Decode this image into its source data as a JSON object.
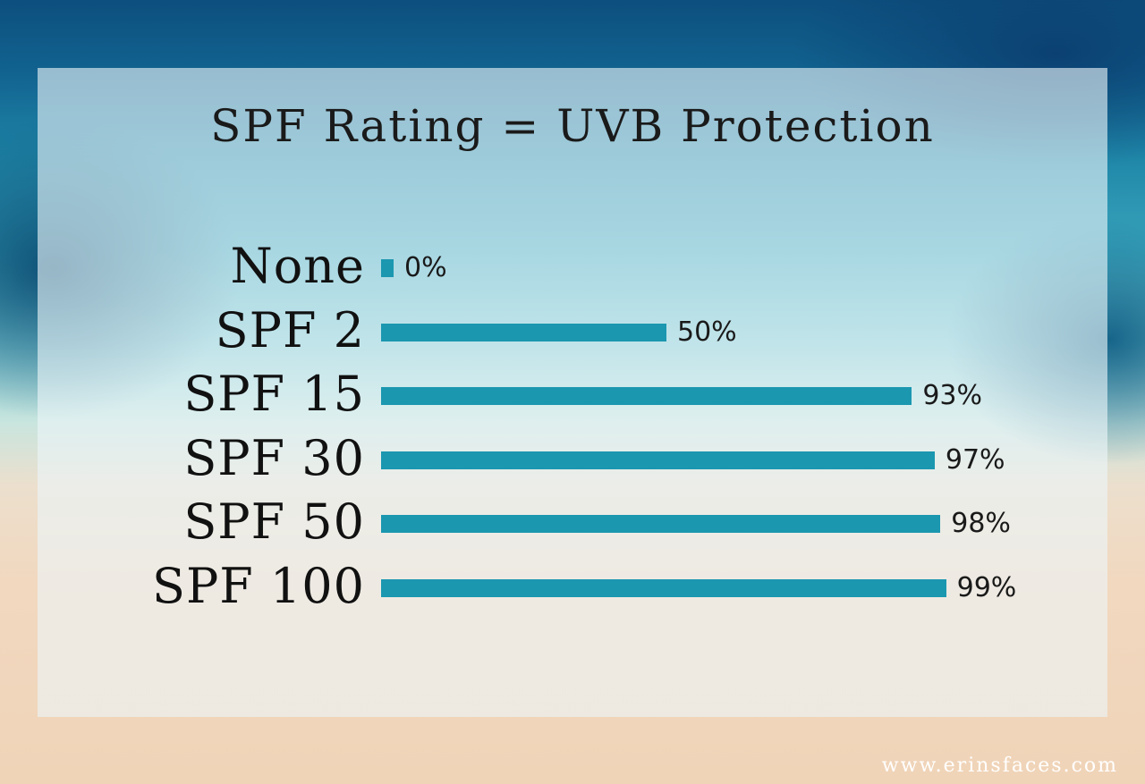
{
  "chart_data": {
    "type": "bar",
    "orientation": "horizontal",
    "title": "SPF Rating = UVB Protection",
    "categories": [
      "None",
      "SPF 2",
      "SPF 15",
      "SPF 30",
      "SPF 50",
      "SPF 100"
    ],
    "values": [
      0,
      50,
      93,
      97,
      98,
      99
    ],
    "value_labels": [
      "0%",
      "50%",
      "93%",
      "97%",
      "98%",
      "99%"
    ],
    "xlim": [
      0,
      100
    ],
    "grid": false,
    "bar_color": "#1b97b0"
  },
  "watermark": "www.erinsfaces.com"
}
